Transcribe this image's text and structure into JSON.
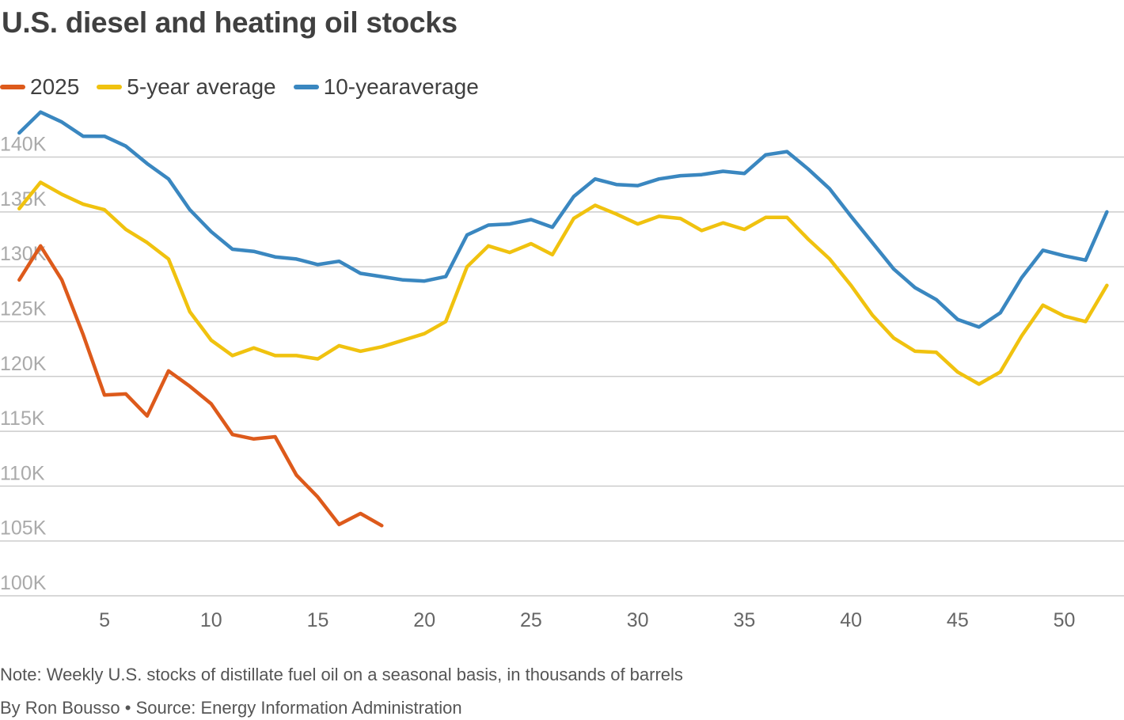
{
  "title": "U.S. diesel and heating oil stocks",
  "note": "Note: Weekly U.S. stocks of distillate fuel oil on a seasonal basis, in thousands of barrels",
  "credit": "By Ron Bousso • Source: Energy Information Administration",
  "colors": {
    "2025": "#dd5a1b",
    "five_year": "#f0c20f",
    "ten_year": "#3a87c0",
    "grid": "#cccccc",
    "tick_label": "#aaaaaa"
  },
  "chart_data": {
    "type": "line",
    "title": "U.S. diesel and heating oil stocks",
    "xlabel": "",
    "ylabel": "",
    "xlim": [
      0.1,
      52.8
    ],
    "ylim": [
      100,
      143.5
    ],
    "yticks": [
      100,
      105,
      110,
      115,
      120,
      125,
      130,
      135,
      140
    ],
    "ytick_labels": [
      "100K",
      "105K",
      "110K",
      "115K",
      "120K",
      "125K",
      "130K",
      "135K",
      "140K"
    ],
    "xticks": [
      5,
      10,
      15,
      20,
      25,
      30,
      35,
      40,
      45,
      50
    ],
    "xtick_labels": [
      "5",
      "10",
      "15",
      "20",
      "25",
      "30",
      "35",
      "40",
      "45",
      "50"
    ],
    "grid": true,
    "legend_position": "top-left",
    "series": [
      {
        "name": "2025",
        "color_key": "2025",
        "x": [
          1,
          2,
          3,
          4,
          5,
          6,
          7,
          8,
          9,
          10,
          11,
          12,
          13,
          14,
          15,
          16,
          17,
          18
        ],
        "values": [
          128.8,
          131.9,
          128.8,
          123.8,
          118.3,
          118.4,
          116.4,
          120.5,
          119.1,
          117.5,
          114.7,
          114.3,
          114.5,
          111.0,
          109.0,
          106.5,
          107.5,
          106.4
        ]
      },
      {
        "name": "5-year average",
        "color_key": "five_year",
        "x": [
          1,
          2,
          3,
          4,
          5,
          6,
          7,
          8,
          9,
          10,
          11,
          12,
          13,
          14,
          15,
          16,
          17,
          18,
          19,
          20,
          21,
          22,
          23,
          24,
          25,
          26,
          27,
          28,
          29,
          30,
          31,
          32,
          33,
          34,
          35,
          36,
          37,
          38,
          39,
          40,
          41,
          42,
          43,
          44,
          45,
          46,
          47,
          48,
          49,
          50,
          51,
          52
        ],
        "values": [
          135.3,
          137.7,
          136.6,
          135.7,
          135.2,
          133.4,
          132.2,
          130.7,
          125.9,
          123.3,
          121.9,
          122.6,
          121.9,
          121.9,
          121.6,
          122.8,
          122.3,
          122.7,
          123.3,
          123.9,
          125.0,
          130.0,
          131.9,
          131.3,
          132.1,
          131.1,
          134.4,
          135.6,
          134.8,
          133.9,
          134.6,
          134.4,
          133.3,
          134.0,
          133.4,
          134.5,
          134.5,
          132.5,
          130.7,
          128.3,
          125.6,
          123.5,
          122.3,
          122.2,
          120.4,
          119.3,
          120.4,
          123.7,
          126.5,
          125.5,
          125.0,
          128.3
        ]
      },
      {
        "name": "10-yearaverage",
        "color_key": "ten_year",
        "x": [
          1,
          2,
          3,
          4,
          5,
          6,
          7,
          8,
          9,
          10,
          11,
          12,
          13,
          14,
          15,
          16,
          17,
          18,
          19,
          20,
          21,
          22,
          23,
          24,
          25,
          26,
          27,
          28,
          29,
          30,
          31,
          32,
          33,
          34,
          35,
          36,
          37,
          38,
          39,
          40,
          41,
          42,
          43,
          44,
          45,
          46,
          47,
          48,
          49,
          50,
          51,
          52
        ],
        "values": [
          142.2,
          144.1,
          143.2,
          141.9,
          141.9,
          141.0,
          139.4,
          138.0,
          135.2,
          133.2,
          131.6,
          131.4,
          130.9,
          130.7,
          130.2,
          130.5,
          129.4,
          129.1,
          128.8,
          128.7,
          129.1,
          132.9,
          133.8,
          133.9,
          134.3,
          133.6,
          136.4,
          138.0,
          137.5,
          137.4,
          138.0,
          138.3,
          138.4,
          138.7,
          138.5,
          140.2,
          140.5,
          138.9,
          137.1,
          134.6,
          132.2,
          129.8,
          128.1,
          127.0,
          125.2,
          124.5,
          125.8,
          129.0,
          131.5,
          131.0,
          130.6,
          135.0
        ]
      }
    ]
  }
}
